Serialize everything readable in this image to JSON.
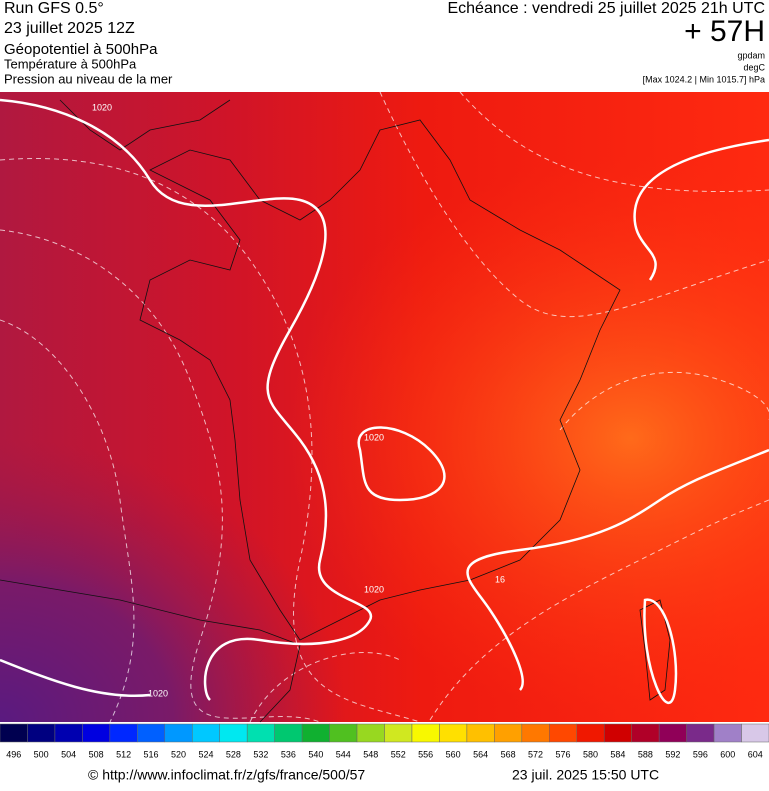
{
  "header": {
    "run": "Run GFS 0.5°",
    "date": "23 juillet 2025 12Z",
    "field1": "Géopotentiel à 500hPa",
    "field2": "Température à 500hPa",
    "field3": "Pression au niveau de la mer",
    "echeance": "Echéance : vendredi 25 juillet 2025 21h UTC",
    "lead": "+ 57H",
    "unit1": "gpdam",
    "unit2": "degC",
    "range": "[Max 1024.2 | Min 1015.7] hPa"
  },
  "map": {
    "contour_labels": [
      "1020",
      "1020",
      "1020",
      "1020",
      "16"
    ]
  },
  "colorbar": {
    "ticks": [
      496,
      500,
      504,
      508,
      512,
      516,
      520,
      524,
      528,
      532,
      536,
      540,
      544,
      548,
      552,
      556,
      560,
      564,
      568,
      572,
      576,
      580,
      584,
      588,
      592,
      596,
      600,
      604
    ],
    "colors": [
      "#000050",
      "#000080",
      "#0000b0",
      "#0000e0",
      "#0028ff",
      "#0060ff",
      "#0098ff",
      "#00c8ff",
      "#00e8f0",
      "#00e0b0",
      "#00c870",
      "#10b030",
      "#50c020",
      "#98d820",
      "#d0e820",
      "#f8f800",
      "#ffe000",
      "#ffc000",
      "#ffa000",
      "#ff7800",
      "#ff4800",
      "#f01800",
      "#d00000",
      "#b00028",
      "#900058",
      "#7a2a8a",
      "#a080c8",
      "#d8c8e8"
    ]
  },
  "footer": {
    "url": "© http://www.infoclimat.fr/z/gfs/france/500/57",
    "generated": "23 juil. 2025 15:50 UTC"
  }
}
